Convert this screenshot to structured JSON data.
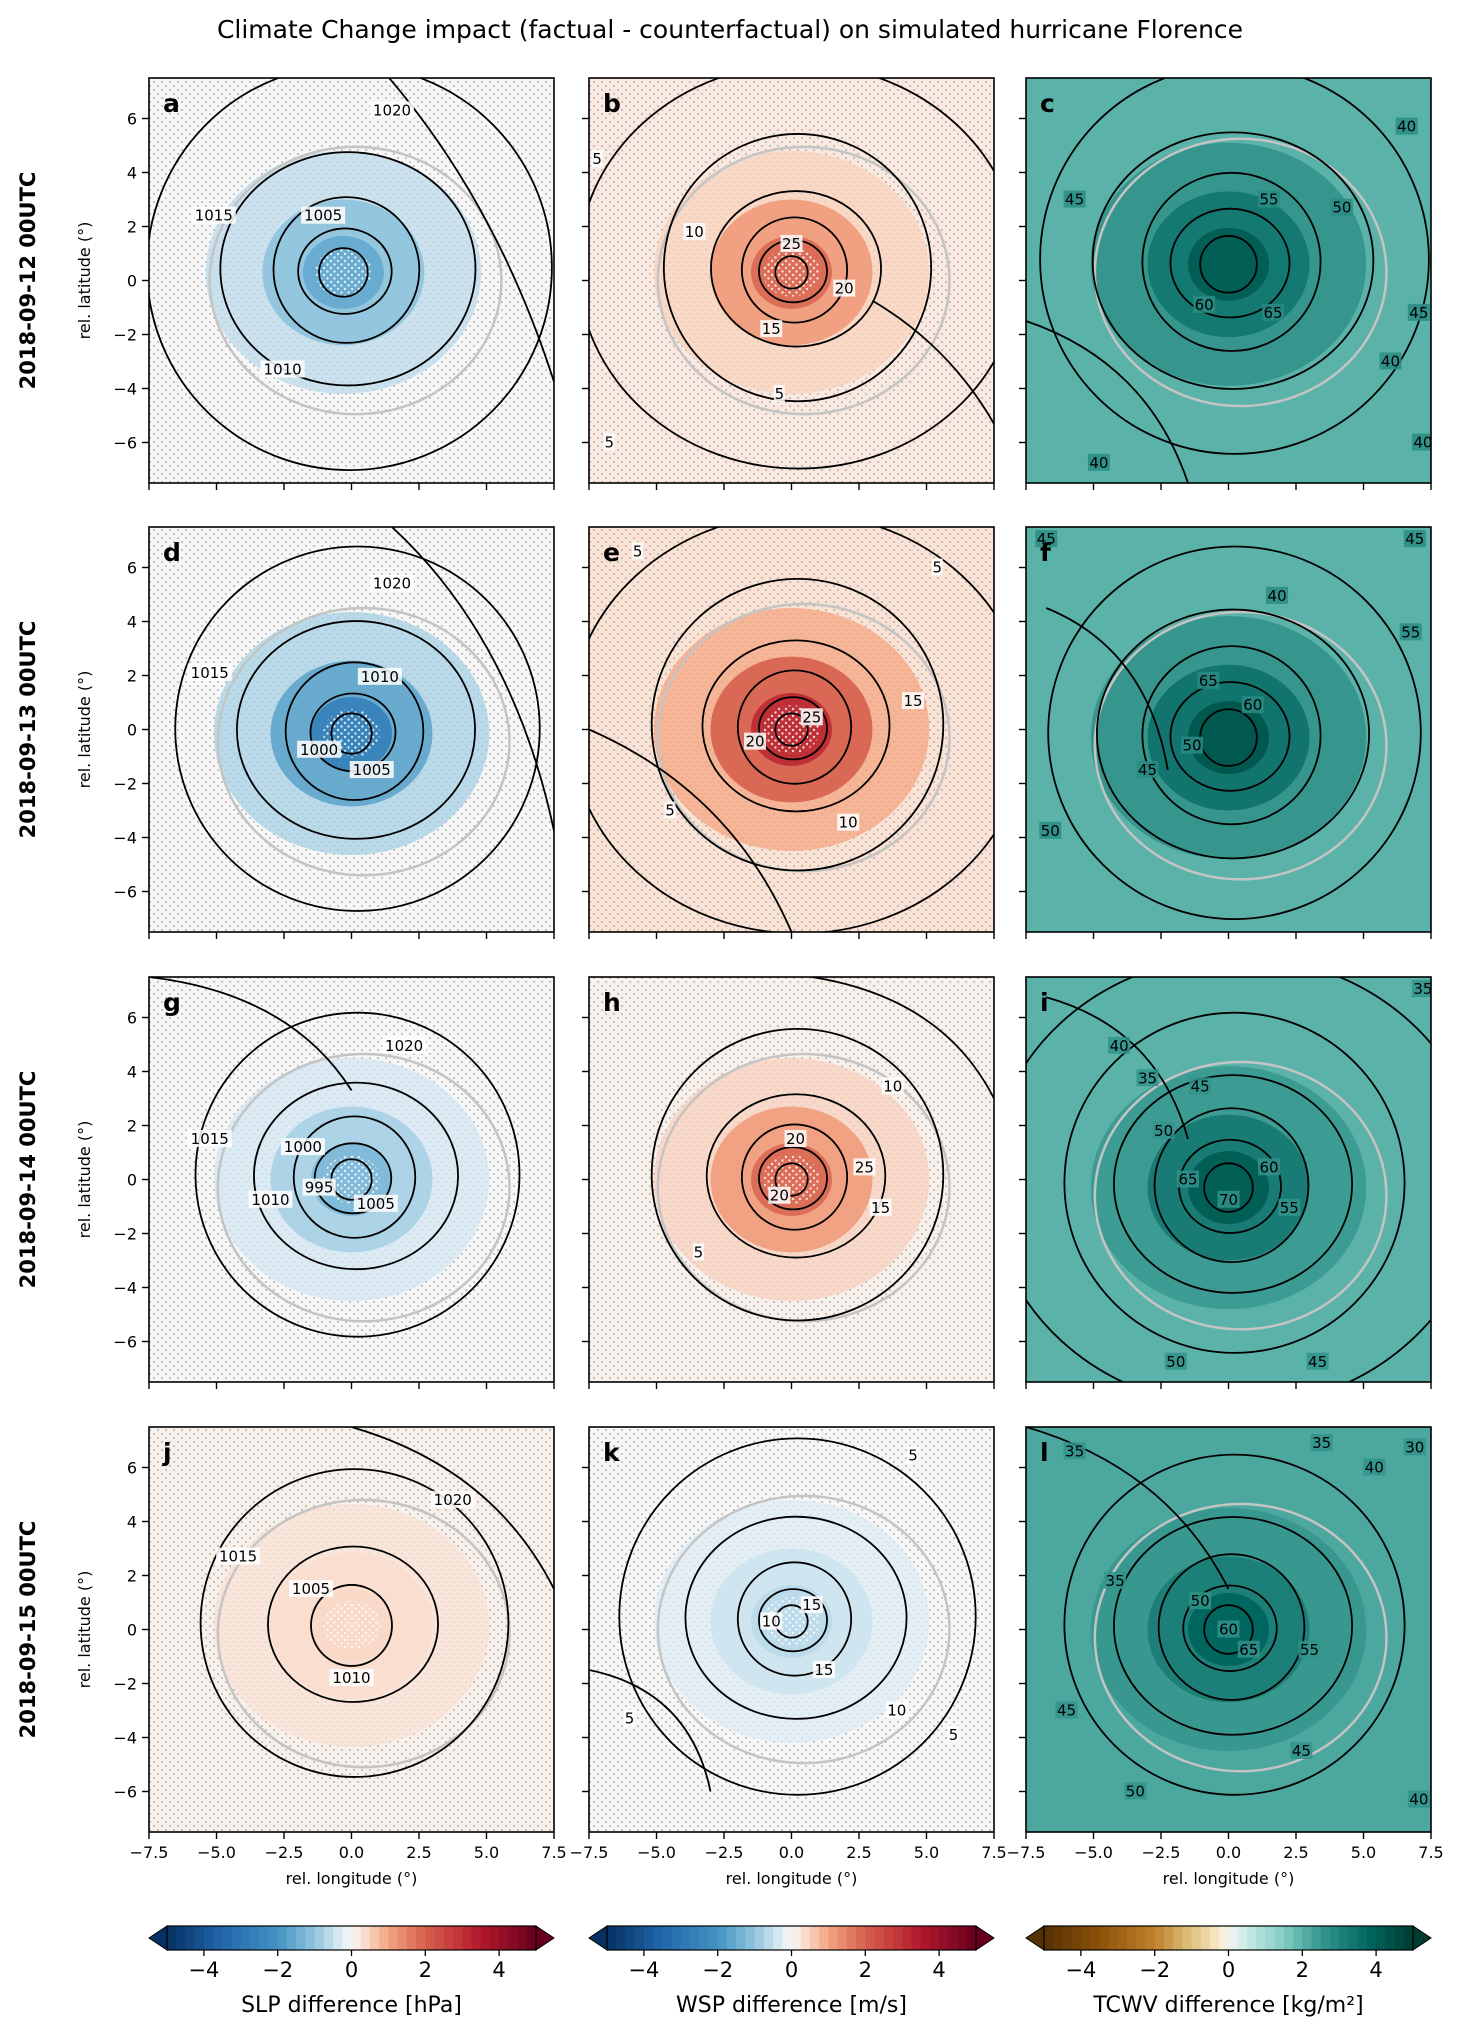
{
  "chart_data": {
    "type": "contour-panel-grid",
    "title": "Climate Change impact (factual - counterfactual) on simulated hurricane Florence",
    "xlabel": "rel. longitude (°)",
    "ylabel": "rel. latitude (°)",
    "xlim": [
      -7.5,
      7.5
    ],
    "ylim": [
      -7.5,
      7.5
    ],
    "xticks": [
      -7.5,
      -5.0,
      -2.5,
      0.0,
      2.5,
      5.0,
      7.5
    ],
    "yticks": [
      -6,
      -4,
      -2,
      0,
      2,
      4,
      6
    ],
    "xtick_labels": [
      "−7.5",
      "−5.0",
      "−2.5",
      "0.0",
      "2.5",
      "5.0",
      "7.5"
    ],
    "ytick_labels": [
      "−6",
      "−4",
      "−2",
      "0",
      "2",
      "4",
      "6"
    ],
    "rows": [
      {
        "date": "2018-09-12 00UTC"
      },
      {
        "date": "2018-09-13 00UTC"
      },
      {
        "date": "2018-09-14 00UTC"
      },
      {
        "date": "2018-09-15 00UTC"
      }
    ],
    "columns": [
      {
        "variable": "SLP",
        "colorbar_label": "SLP difference [hPa]",
        "cmap": "RdBu_r",
        "vmin": -5,
        "vmax": 5,
        "colorbar_ticks": [
          -4,
          -2,
          0,
          2,
          4
        ],
        "colorbar_tick_labels": [
          "−4",
          "−2",
          "0",
          "2",
          "4"
        ]
      },
      {
        "variable": "WSP",
        "colorbar_label": "WSP difference [m/s]",
        "cmap": "RdBu_r",
        "vmin": -5,
        "vmax": 5,
        "colorbar_ticks": [
          -4,
          -2,
          0,
          2,
          4
        ],
        "colorbar_tick_labels": [
          "−4",
          "−2",
          "0",
          "2",
          "4"
        ]
      },
      {
        "variable": "TCWV",
        "colorbar_label": "TCWV difference [kg/m²]",
        "cmap": "BrBG",
        "vmin": -5,
        "vmax": 5,
        "colorbar_ticks": [
          -4,
          -2,
          0,
          2,
          4
        ],
        "colorbar_tick_labels": [
          "−4",
          "−2",
          "0",
          "2",
          "4"
        ]
      }
    ],
    "panels": [
      {
        "letter": "a",
        "row": 0,
        "col": 0,
        "center_diff": -1.5,
        "halo_diff": -0.6,
        "background_diff": 0.0,
        "contour_labels": [
          "1020",
          "1015",
          "1010",
          "1005"
        ]
      },
      {
        "letter": "b",
        "row": 0,
        "col": 1,
        "center_diff": 1.8,
        "halo_diff": 0.5,
        "background_diff": 0.2,
        "contour_labels": [
          "5",
          "10",
          "15",
          "20",
          "25",
          "5",
          "5"
        ]
      },
      {
        "letter": "c",
        "row": 0,
        "col": 2,
        "center_diff": 4.0,
        "halo_diff": 2.8,
        "background_diff": 2.0,
        "contour_labels": [
          "45",
          "40",
          "55",
          "50",
          "60",
          "65",
          "45",
          "40",
          "40",
          "40"
        ]
      },
      {
        "letter": "d",
        "row": 1,
        "col": 0,
        "center_diff": -2.5,
        "halo_diff": -0.8,
        "background_diff": 0.0,
        "contour_labels": [
          "1020",
          "1015",
          "1010",
          "1005",
          "1000"
        ]
      },
      {
        "letter": "e",
        "row": 1,
        "col": 1,
        "center_diff": 3.0,
        "halo_diff": 1.0,
        "background_diff": 0.3,
        "contour_labels": [
          "5",
          "5",
          "15",
          "10",
          "5",
          "20",
          "25"
        ]
      },
      {
        "letter": "f",
        "row": 1,
        "col": 2,
        "center_diff": 4.2,
        "halo_diff": 2.8,
        "background_diff": 2.0,
        "contour_labels": [
          "45",
          "45",
          "40",
          "55",
          "65",
          "60",
          "50",
          "45",
          "50"
        ]
      },
      {
        "letter": "g",
        "row": 2,
        "col": 0,
        "center_diff": -1.2,
        "halo_diff": -0.4,
        "background_diff": 0.0,
        "contour_labels": [
          "1020",
          "1015",
          "1010",
          "1005",
          "1000",
          "995"
        ]
      },
      {
        "letter": "h",
        "row": 2,
        "col": 1,
        "center_diff": 1.8,
        "halo_diff": 0.5,
        "background_diff": 0.1,
        "contour_labels": [
          "10",
          "20",
          "25",
          "15",
          "20",
          "5"
        ]
      },
      {
        "letter": "i",
        "row": 2,
        "col": 2,
        "center_diff": 4.0,
        "halo_diff": 2.6,
        "background_diff": 2.0,
        "contour_labels": [
          "35",
          "40",
          "35",
          "45",
          "50",
          "65",
          "70",
          "60",
          "55",
          "50",
          "45"
        ]
      },
      {
        "letter": "j",
        "row": 3,
        "col": 0,
        "center_diff": 0.4,
        "halo_diff": 0.3,
        "background_diff": 0.1,
        "contour_labels": [
          "1020",
          "1015",
          "1005",
          "1010"
        ]
      },
      {
        "letter": "k",
        "row": 3,
        "col": 1,
        "center_diff": -0.6,
        "halo_diff": -0.3,
        "background_diff": 0.0,
        "contour_labels": [
          "5",
          "15",
          "10",
          "15",
          "10",
          "5",
          "5"
        ]
      },
      {
        "letter": "l",
        "row": 3,
        "col": 2,
        "center_diff": 3.8,
        "halo_diff": 2.6,
        "background_diff": 2.2,
        "contour_labels": [
          "35",
          "35",
          "30",
          "40",
          "35",
          "50",
          "60",
          "65",
          "55",
          "45",
          "45",
          "50",
          "40"
        ]
      }
    ]
  }
}
